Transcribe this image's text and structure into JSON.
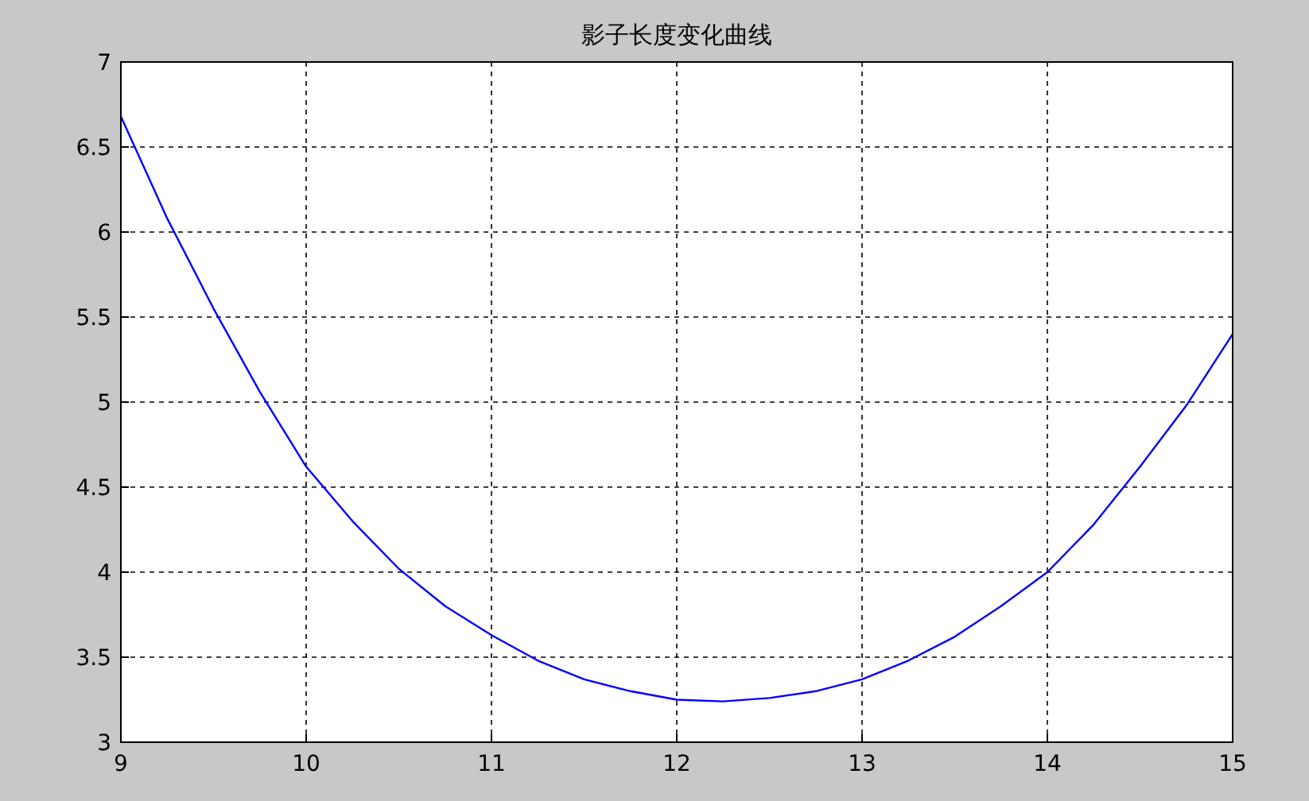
{
  "chart_data": {
    "type": "line",
    "title": "影子长度变化曲线",
    "series": [
      {
        "color": "#0000ff",
        "x": [
          9,
          9.25,
          9.5,
          9.75,
          10,
          10.25,
          10.5,
          10.75,
          11,
          11.25,
          11.5,
          11.75,
          12,
          12.25,
          12.5,
          12.75,
          13,
          13.25,
          13.5,
          13.75,
          14,
          14.25,
          14.5,
          14.75,
          15
        ],
        "values": [
          6.68,
          6.08,
          5.55,
          5.06,
          4.62,
          4.3,
          4.02,
          3.8,
          3.63,
          3.48,
          3.37,
          3.3,
          3.25,
          3.24,
          3.26,
          3.3,
          3.37,
          3.48,
          3.62,
          3.8,
          4.0,
          4.28,
          4.62,
          4.98,
          5.4
        ]
      }
    ],
    "xlim": [
      9,
      15
    ],
    "ylim": [
      3,
      7
    ],
    "xticks": [
      9,
      10,
      11,
      12,
      13,
      14,
      15
    ],
    "yticks": [
      3,
      3.5,
      4,
      4.5,
      5,
      5.5,
      6,
      6.5,
      7
    ],
    "grid": true,
    "line_style": "solid"
  }
}
